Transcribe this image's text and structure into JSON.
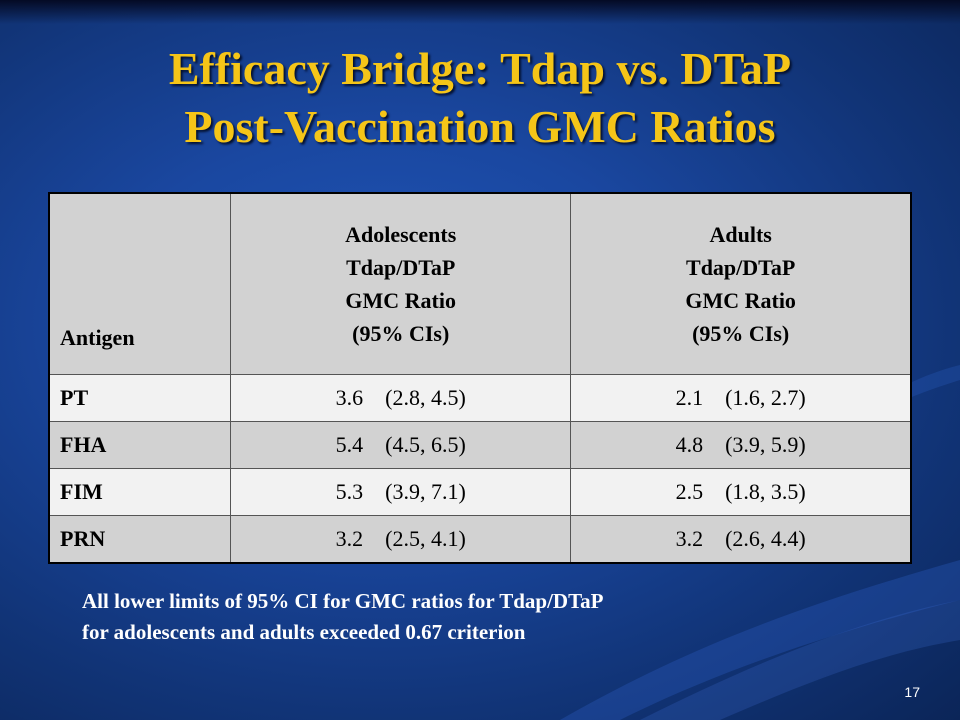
{
  "slide": {
    "title_lines": [
      "Efficacy Bridge: Tdap vs. DTaP",
      "Post-Vaccination GMC Ratios"
    ],
    "table": {
      "headers": {
        "antigen": "Antigen",
        "adolescents": [
          "Adolescents",
          "Tdap/DTaP",
          "GMC Ratio",
          "(95% CIs)"
        ],
        "adults": [
          "Adults",
          "Tdap/DTaP",
          "GMC Ratio",
          "(95% CIs)"
        ]
      },
      "rows": [
        {
          "antigen": "PT",
          "adolescents": {
            "ratio": "3.6",
            "ci": "(2.8, 4.5)"
          },
          "adults": {
            "ratio": "2.1",
            "ci": "(1.6, 2.7)"
          }
        },
        {
          "antigen": "FHA",
          "adolescents": {
            "ratio": "5.4",
            "ci": "(4.5, 6.5)"
          },
          "adults": {
            "ratio": "4.8",
            "ci": "(3.9, 5.9)"
          }
        },
        {
          "antigen": "FIM",
          "adolescents": {
            "ratio": "5.3",
            "ci": "(3.9, 7.1)"
          },
          "adults": {
            "ratio": "2.5",
            "ci": "(1.8, 3.5)"
          }
        },
        {
          "antigen": "PRN",
          "adolescents": {
            "ratio": "3.2",
            "ci": "(2.5, 4.1)"
          },
          "adults": {
            "ratio": "3.2",
            "ci": "(2.6, 4.4)"
          }
        }
      ]
    },
    "footnote_lines": [
      "All lower limits of 95% CI for GMC ratios for Tdap/DTaP",
      "for adolescents and adults exceeded 0.67 criterion"
    ],
    "page_number": "17",
    "colors": {
      "background": "#1a47a0",
      "title": "#f5c518",
      "header_fill": "#d2d2d2",
      "row_light": "#f2f2f2",
      "row_dark": "#d2d2d2",
      "footnote": "#ffffff"
    }
  }
}
